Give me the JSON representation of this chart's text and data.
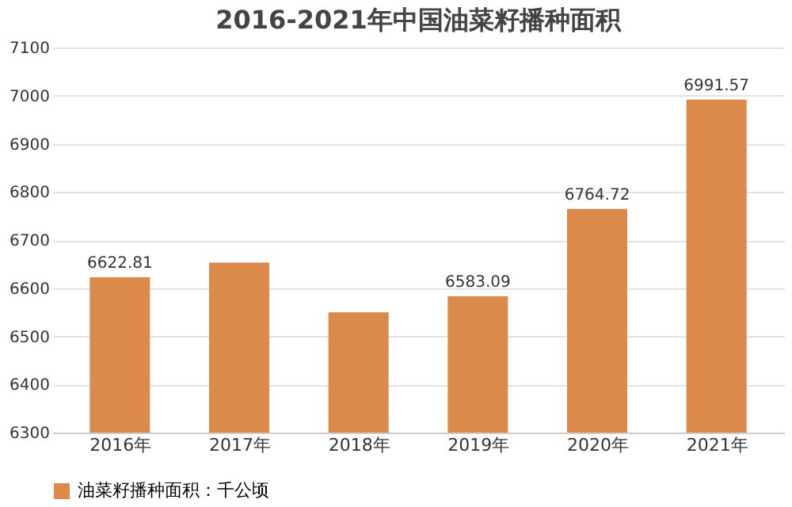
{
  "chart_data": {
    "type": "bar",
    "title": "2016-2021年中国油菜籽播种面积",
    "categories": [
      "2016年",
      "2017年",
      "2018年",
      "2019年",
      "2020年",
      "2021年"
    ],
    "series": [
      {
        "name": "油菜籽播种面积：千公顷",
        "color": "#dc8a4c",
        "values": [
          6622.81,
          6653,
          6550,
          6583.09,
          6764.72,
          6991.57
        ],
        "value_labels": [
          "6622.81",
          null,
          null,
          "6583.09",
          "6764.72",
          "6991.57"
        ]
      }
    ],
    "ylim": [
      6300,
      7100
    ],
    "yticks": [
      6300,
      6400,
      6500,
      6600,
      6700,
      6800,
      6900,
      7000,
      7100
    ],
    "grid": "y",
    "legend": "bottom"
  }
}
